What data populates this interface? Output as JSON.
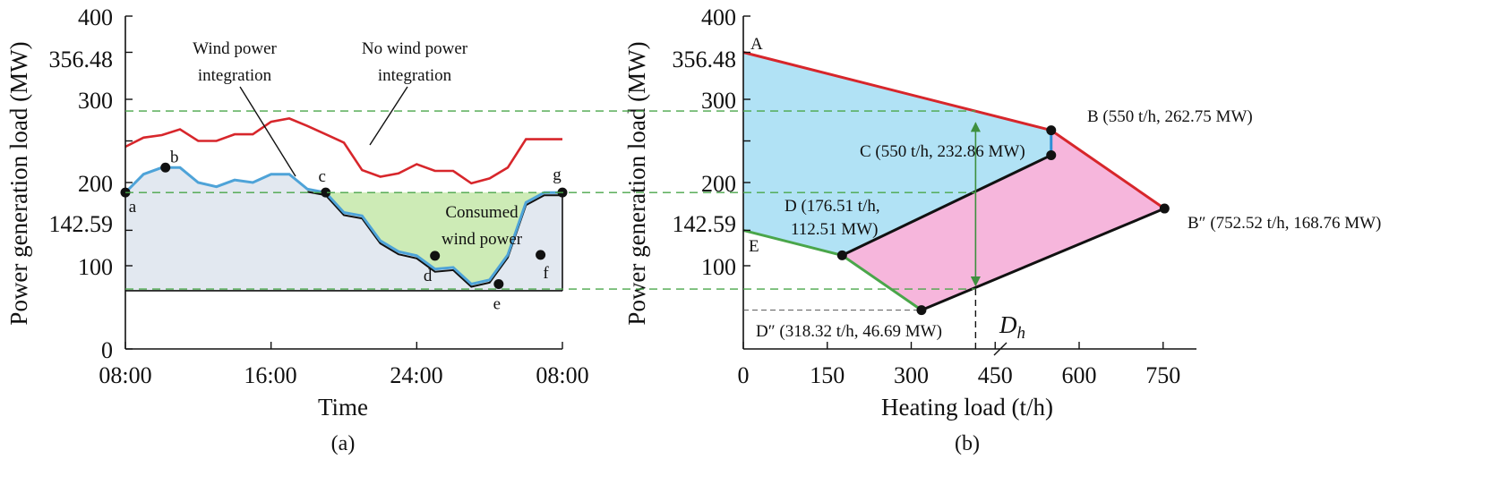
{
  "chart_data": [
    {
      "type": "line",
      "panel_label": "(a)",
      "xlabel": "Time",
      "ylabel": "Power generation load (MW)",
      "xticks": [
        "08:00",
        "16:00",
        "24:00",
        "08:00"
      ],
      "xlim": [
        0,
        24
      ],
      "ylim": [
        0,
        400
      ],
      "yticks": [
        0,
        100,
        "142.59",
        200,
        300,
        "356.48",
        400
      ],
      "series": [
        {
          "name": "No wind power integration",
          "color": "#d7262b",
          "x": [
            0,
            1,
            2,
            3,
            4,
            5,
            6,
            7,
            8,
            9,
            10,
            11,
            12,
            13,
            14,
            15,
            16,
            17,
            18,
            19,
            20,
            21,
            22,
            23,
            24
          ],
          "y": [
            243,
            254,
            257,
            264,
            250,
            250,
            258,
            258,
            273,
            277,
            268,
            258,
            248,
            215,
            207,
            211,
            222,
            214,
            214,
            199,
            205,
            218,
            252,
            252,
            252
          ]
        },
        {
          "name": "Wind power integration",
          "color": "#4ea3d8",
          "x": [
            0,
            1,
            2,
            3,
            4,
            5,
            6,
            7,
            8,
            9,
            10,
            11,
            12,
            13,
            14,
            15,
            16,
            17,
            18,
            19,
            20,
            21,
            22,
            23,
            24
          ],
          "y": [
            188,
            210,
            218,
            218,
            200,
            195,
            203,
            200,
            210,
            210,
            192,
            188,
            164,
            160,
            130,
            117,
            112,
            96,
            98,
            78,
            83,
            113,
            176,
            188,
            188
          ]
        }
      ],
      "annotations": [
        "Wind power integration",
        "No wind power integration",
        "Consumed wind power"
      ],
      "points": [
        "a",
        "b",
        "c",
        "d",
        "e",
        "f",
        "g"
      ]
    },
    {
      "type": "area",
      "panel_label": "(b)",
      "xlabel": "Heating load (t/h)",
      "ylabel": "Power generation load (MW)",
      "xlim": [
        0,
        800
      ],
      "ylim": [
        0,
        400
      ],
      "xticks": [
        0,
        150,
        300,
        450,
        600,
        750
      ],
      "yticks": [
        100,
        "142.59",
        200,
        300,
        "356.48",
        400
      ],
      "points": {
        "A": [
          0,
          356.48
        ],
        "B": [
          550,
          262.75
        ],
        "B2": [
          752.52,
          168.76
        ],
        "C": [
          550,
          232.86
        ],
        "D": [
          176.51,
          112.51
        ],
        "D2": [
          318.32,
          46.69
        ],
        "E": [
          0,
          142.59
        ]
      },
      "point_labels": {
        "A": "A",
        "B": "B (550 t/h, 262.75 MW)",
        "C": "C (550 t/h, 232.86 MW)",
        "D_line1": "D (176.51 t/h,",
        "D_line2": "112.51 MW)",
        "B2": "B″ (752.52 t/h, 168.76 MW)",
        "D2": "D″ (318.32 t/h, 46.69 MW)",
        "E": "E",
        "Dh": "D",
        "Dh_sub": "h"
      },
      "colors": {
        "region_blue": "#b1e2f5",
        "region_pink": "#f6b6dc",
        "edge_red": "#d7262b",
        "edge_green": "#4aa64a",
        "edge_black": "#111111",
        "edge_blue": "#2d8fd5"
      }
    }
  ]
}
